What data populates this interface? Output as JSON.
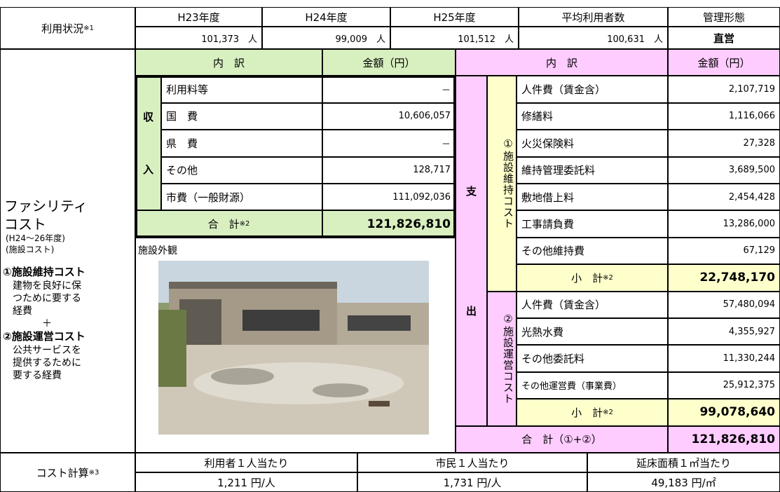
{
  "usage": {
    "label": "利用状況",
    "note": "※1",
    "headers": [
      "H23年度",
      "H24年度",
      "H25年度",
      "平均利用者数",
      "管理形態"
    ],
    "values": [
      "101,373　人",
      "99,009　人",
      "101,512　人",
      "100,631　人",
      "直営"
    ]
  },
  "facility": {
    "title_lines": [
      "ファシリティ",
      "コスト"
    ],
    "period": "(H24～26年度)",
    "subtitle": "(施設コスト)",
    "maintenance_title": "①施設維持コスト",
    "maintenance_desc": [
      "建物を良好に保",
      "つために要する",
      "経費"
    ],
    "plus": "＋",
    "operation_title": "②施設運営コスト",
    "operation_desc": [
      "公共サービスを",
      "提供するために",
      "要する経費"
    ]
  },
  "income": {
    "header": [
      "内　訳",
      "金額（円）"
    ],
    "side_label": [
      "収",
      "入"
    ],
    "rows": [
      [
        "利用料等",
        "－"
      ],
      [
        "国　費",
        "10,606,057"
      ],
      [
        "県　費",
        "－"
      ],
      [
        "その他",
        "128,717"
      ],
      [
        "市費（一般財源）",
        "111,092,036"
      ]
    ],
    "total": {
      "label": "合　計",
      "note": "※2",
      "amount": "121,826,810"
    }
  },
  "photo_label": "施設外観",
  "expense": {
    "header": [
      "内　訳",
      "金額（円）"
    ],
    "side_label": [
      "支",
      "出"
    ],
    "maintenance": {
      "label": "①施設維持コスト",
      "rows": [
        [
          "人件費（賃金含）",
          "2,107,719"
        ],
        [
          "修繕料",
          "1,116,066"
        ],
        [
          "火災保険料",
          "27,328"
        ],
        [
          "維持管理委託料",
          "3,689,500"
        ],
        [
          "敷地借上料",
          "2,454,428"
        ],
        [
          "工事請負費",
          "13,286,000"
        ],
        [
          "その他維持費",
          "67,129"
        ]
      ],
      "subtotal": {
        "label": "小　計",
        "note": "※2",
        "amount": "22,748,170"
      }
    },
    "operation": {
      "label": "②施設運営コスト",
      "rows": [
        [
          "人件費（賃金含）",
          "57,480,094"
        ],
        [
          "光熱水費",
          "4,355,927"
        ],
        [
          "その他委託料",
          "11,330,244"
        ],
        [
          "その他運営費（事業費）",
          "25,912,375"
        ]
      ],
      "subtotal": {
        "label": "小　計",
        "note": "※2",
        "amount": "99,078,640"
      }
    },
    "total": {
      "label": "合　計（①+②）",
      "amount": "121,826,810"
    }
  },
  "cost": {
    "label": "コスト計算",
    "note": "※3",
    "headers": [
      "利用者１人当たり",
      "市民１人当たり",
      "延床面積１㎡当たり"
    ],
    "values": [
      "1,211 円/人",
      "1,731 円/人",
      "49,183 円/㎡"
    ]
  }
}
